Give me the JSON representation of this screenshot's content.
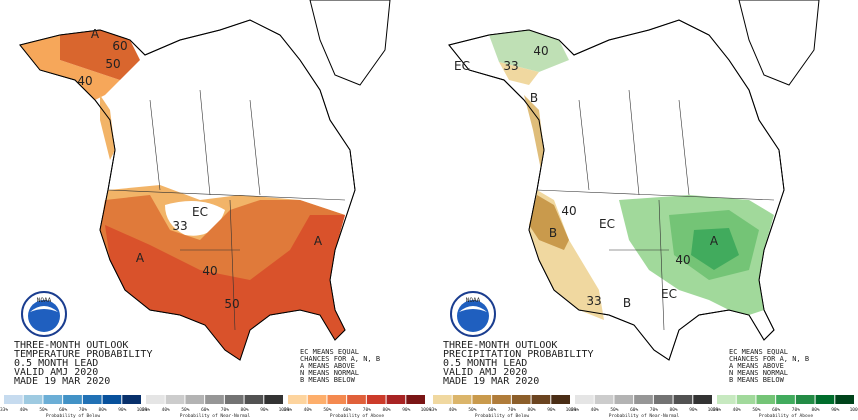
{
  "logo_text": "NOAA",
  "panels": [
    {
      "title_lines": [
        "THREE-MONTH OUTLOOK",
        "TEMPERATURE PROBABILITY",
        "0.5 MONTH LEAD",
        "VALID AMJ 2020",
        "MADE 19 MAR 2020"
      ],
      "note_lines": [
        "EC MEANS EQUAL",
        "CHANCES FOR A, N, B",
        "A MEANS ABOVE",
        "N MEANS NORMAL",
        "B MEANS BELOW"
      ],
      "map_labels": [
        "A",
        "60",
        "50",
        "40",
        "EC",
        "33",
        "A",
        "40",
        "50",
        "A"
      ],
      "colorbar": {
        "ticks": [
          "33%",
          "40%",
          "50%",
          "60%",
          "70%",
          "80%",
          "90%",
          "100%"
        ],
        "sections": [
          {
            "caption": "Probability of Below",
            "colors": [
              "#c6dbef",
              "#9ecae1",
              "#6baed6",
              "#4292c6",
              "#2171b5",
              "#08519c",
              "#08306b"
            ]
          },
          {
            "caption": "Probability of Near-Normal",
            "colors": [
              "#e5e5e5",
              "#cccccc",
              "#b3b3b3",
              "#969696",
              "#737373",
              "#525252",
              "#333333"
            ]
          },
          {
            "caption": "Probability of Above",
            "colors": [
              "#fdd49e",
              "#fdae6b",
              "#f4894f",
              "#e0603a",
              "#cc3b2a",
              "#a82323",
              "#7a1515"
            ]
          }
        ]
      }
    },
    {
      "title_lines": [
        "THREE-MONTH OUTLOOK",
        "PRECIPITATION PROBABILITY",
        "0.5 MONTH LEAD",
        "VALID AMJ 2020",
        "MADE 19 MAR 2020"
      ],
      "note_lines": [
        "EC MEANS EQUAL",
        "CHANCES FOR A, N, B",
        "A MEANS ABOVE",
        "N MEANS NORMAL",
        "B MEANS BELOW"
      ],
      "map_labels": [
        "EC",
        "40",
        "33",
        "B",
        "B",
        "40",
        "EC",
        "A",
        "40",
        "B",
        "33",
        "EC"
      ],
      "colorbar": {
        "ticks": [
          "33%",
          "40%",
          "50%",
          "60%",
          "70%",
          "80%",
          "90%",
          "100%"
        ],
        "sections": [
          {
            "caption": "Probability of Below",
            "colors": [
              "#f0d8a0",
              "#dbb56a",
              "#c99a4c",
              "#b07c3a",
              "#8c5e2a",
              "#6b4420",
              "#4a2d15"
            ]
          },
          {
            "caption": "Probability of Near-Normal",
            "colors": [
              "#e5e5e5",
              "#cccccc",
              "#b3b3b3",
              "#969696",
              "#737373",
              "#525252",
              "#333333"
            ]
          },
          {
            "caption": "Probability of Above",
            "colors": [
              "#c7e9c0",
              "#a1d99b",
              "#74c476",
              "#41ab5d",
              "#238b45",
              "#006d2c",
              "#00441b"
            ]
          }
        ]
      }
    }
  ]
}
